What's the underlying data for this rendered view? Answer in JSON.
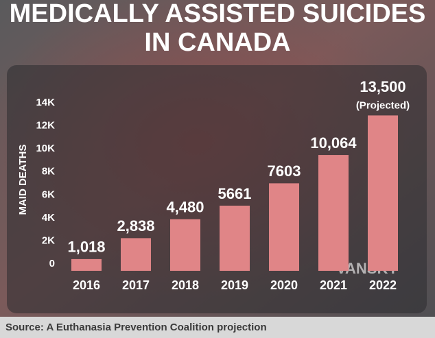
{
  "chart_data": {
    "type": "bar",
    "title_lines": [
      "MEDICALLY ASSISTED SUICIDES",
      "IN CANADA"
    ],
    "y_label": "MAID DEATHS",
    "categories": [
      "2016",
      "2017",
      "2018",
      "2019",
      "2020",
      "2021",
      "2022"
    ],
    "values": [
      1018,
      2838,
      4480,
      5661,
      7603,
      10064,
      13500
    ],
    "value_labels": [
      "1,018",
      "2,838",
      "4,480",
      "5661",
      "7603",
      "10,064",
      "13,500"
    ],
    "annotation": "(Projected)",
    "color": "#e08587",
    "ylim": [
      0,
      14000
    ],
    "yticks": [
      {
        "value": 0,
        "label": "0"
      },
      {
        "value": 2000,
        "label": "2K"
      },
      {
        "value": 4000,
        "label": "4K"
      },
      {
        "value": 6000,
        "label": "6K"
      },
      {
        "value": 8000,
        "label": "8K"
      },
      {
        "value": 10000,
        "label": "10K"
      },
      {
        "value": 12000,
        "label": "12K"
      },
      {
        "value": 14000,
        "label": "14K"
      }
    ],
    "grid": false,
    "source": "Source: A Euthanasia Prevention Coalition projection",
    "watermark": "VANSKY"
  }
}
